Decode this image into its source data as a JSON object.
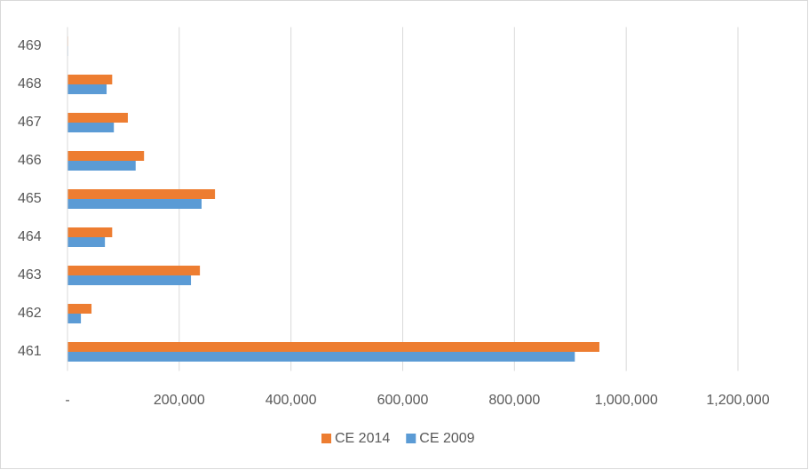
{
  "chart_data": {
    "type": "hbar",
    "categories": [
      "461",
      "462",
      "463",
      "464",
      "465",
      "466",
      "467",
      "468",
      "469"
    ],
    "series": [
      {
        "name": "CE 2014",
        "color": "#ed7d31",
        "values": [
          952000,
          43000,
          237000,
          80000,
          264000,
          137000,
          108000,
          80000,
          1000
        ]
      },
      {
        "name": "CE 2009",
        "color": "#5b9bd5",
        "values": [
          908000,
          24000,
          221000,
          67000,
          240000,
          122000,
          83000,
          70000,
          1000
        ]
      }
    ],
    "xlim": [
      0,
      1200000
    ],
    "xticks": [
      {
        "value": 0,
        "label": "-"
      },
      {
        "value": 200000,
        "label": "200,000"
      },
      {
        "value": 400000,
        "label": "400,000"
      },
      {
        "value": 600000,
        "label": "600,000"
      },
      {
        "value": 800000,
        "label": "800,000"
      },
      {
        "value": 1000000,
        "label": "1,000,000"
      },
      {
        "value": 1200000,
        "label": "1,200,000"
      }
    ],
    "grid": true,
    "legend": "bottom"
  }
}
